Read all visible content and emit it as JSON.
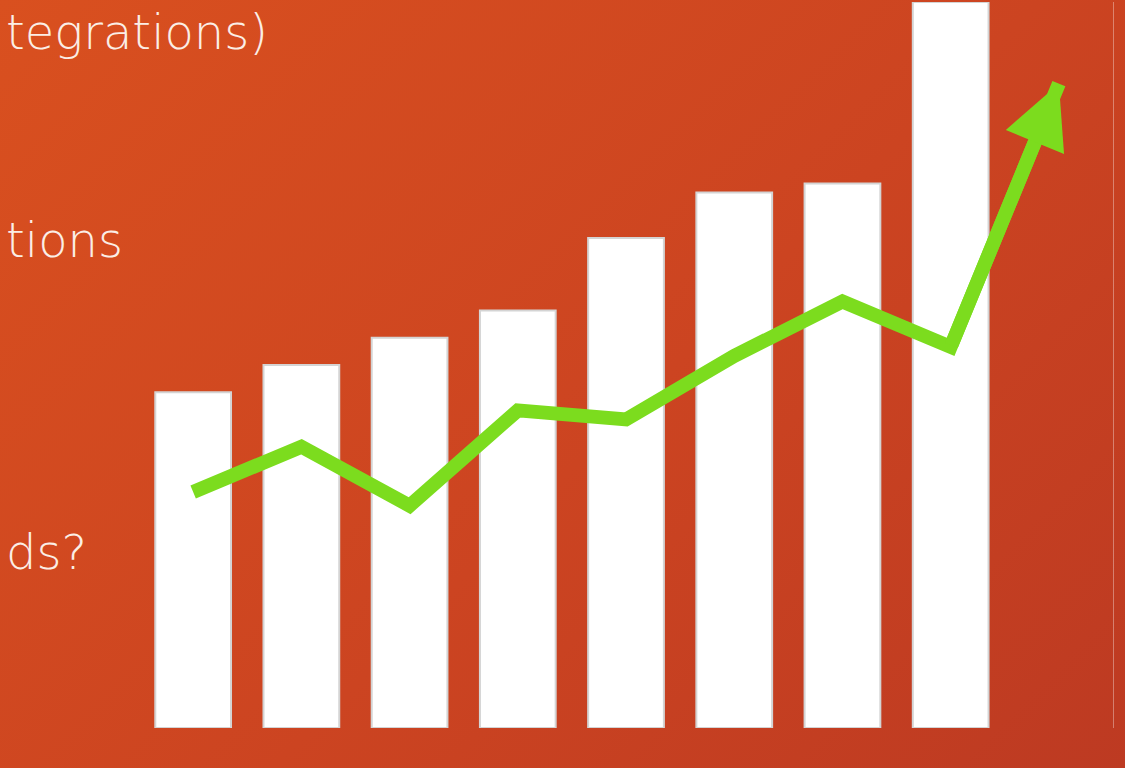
{
  "chart_data": {
    "type": "bar",
    "categories": [
      null,
      null,
      null,
      null,
      null,
      null,
      null,
      null,
      null
    ],
    "series": [
      {
        "type": "bar",
        "color": "#ffffff",
        "values": [
          37,
          40,
          43,
          46,
          54,
          59,
          60,
          80,
          null
        ]
      },
      {
        "type": "line",
        "color": "#7cdc1e",
        "line_style": "solid",
        "values": [
          26,
          31,
          24.5,
          35,
          34,
          41,
          47,
          42,
          71
        ]
      }
    ],
    "ylim": [
      0,
      80
    ],
    "grid": false,
    "tick_labels": false,
    "annotations": [
      "tegrations)",
      "tions",
      "ds?"
    ]
  }
}
